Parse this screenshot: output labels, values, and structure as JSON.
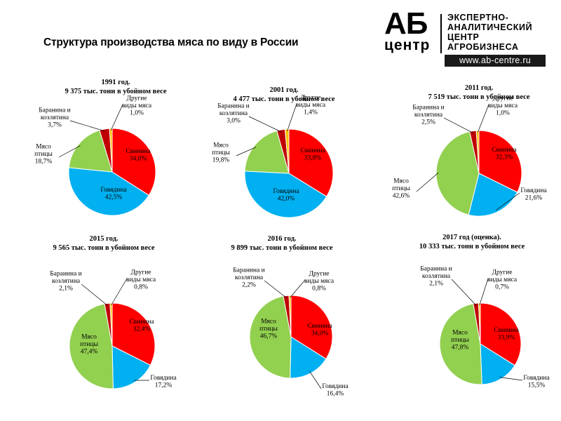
{
  "page_title": "Структура производства мяса по виду в России",
  "logo": {
    "ab": "АБ",
    "center": "центр",
    "lines": [
      "ЭКСПЕРТНО-",
      "АНАЛИТИЧЕСКИЙ",
      "ЦЕНТР",
      "АГРОБИЗНЕСА"
    ],
    "url": "www.ab-centre.ru"
  },
  "colors": {
    "Свинина": "#ff0000",
    "Говядина": "#00b0f0",
    "Мясо птицы": "#92d050",
    "Баранина и козлятина": "#c00000",
    "Другие виды мяса": "#ffc000"
  },
  "chart_data": [
    {
      "type": "pie",
      "title": "1991 год.",
      "subtitle": "9 375 тыс.  тонн  в убойном  весе",
      "slices": [
        {
          "name": "Свинина",
          "label": "Свинина",
          "pct_text": "34,0%",
          "value": 34.0
        },
        {
          "name": "Говядина",
          "label": "Говядина",
          "pct_text": "42,5%",
          "value": 42.5
        },
        {
          "name": "Мясо птицы",
          "label": "Мясо птицы",
          "pct_text": "18,7%",
          "value": 18.7
        },
        {
          "name": "Баранина и козлятина",
          "label": "Баранина и козлятина",
          "pct_text": "3,7%",
          "value": 3.7
        },
        {
          "name": "Другие виды мяса",
          "label": "Другие виды мяса",
          "pct_text": "1,0%",
          "value": 1.0
        }
      ]
    },
    {
      "type": "pie",
      "title": "2001 год.",
      "subtitle": "4 477 тыс.  тонн  в убойном   весе",
      "slices": [
        {
          "name": "Свинина",
          "label": "Свинина",
          "pct_text": "33,8%",
          "value": 33.8
        },
        {
          "name": "Говядина",
          "label": "Говядина",
          "pct_text": "42,0%",
          "value": 42.0
        },
        {
          "name": "Мясо птицы",
          "label": "Мясо птицы",
          "pct_text": "19,8%",
          "value": 19.8
        },
        {
          "name": "Баранина и козлятина",
          "label": "Баранина и козлятина",
          "pct_text": "3,0%",
          "value": 3.0
        },
        {
          "name": "Другие виды мяса",
          "label": "Другие виды мяса",
          "pct_text": "1,4%",
          "value": 1.4
        }
      ]
    },
    {
      "type": "pie",
      "title": "2011 год.",
      "subtitle": "7 519 тыс.  тонн  в убойном  весе",
      "slices": [
        {
          "name": "Свинина",
          "label": "Свинина",
          "pct_text": "32,3%",
          "value": 32.3
        },
        {
          "name": "Говядина",
          "label": "Говядина",
          "pct_text": "21,6%",
          "value": 21.6
        },
        {
          "name": "Мясо птицы",
          "label": "Мясо птицы",
          "pct_text": "42,6%",
          "value": 42.6
        },
        {
          "name": "Баранина и козлятина",
          "label": "Баранина и козлятина",
          "pct_text": "2,5%",
          "value": 2.5
        },
        {
          "name": "Другие виды мяса",
          "label": "Другие виды мяса",
          "pct_text": "1,0%",
          "value": 1.0
        }
      ]
    },
    {
      "type": "pie",
      "title": "2015 год.",
      "subtitle": "9 565 тыс.  тонн  в убойном   весе",
      "slices": [
        {
          "name": "Свинина",
          "label": "Свинина",
          "pct_text": "32,4%",
          "value": 32.4
        },
        {
          "name": "Говядина",
          "label": "Говядина",
          "pct_text": "17,2%",
          "value": 17.2
        },
        {
          "name": "Мясо птицы",
          "label": "Мясо птицы",
          "pct_text": "47,4%",
          "value": 47.4
        },
        {
          "name": "Баранина и козлятина",
          "label": "Баранина и козлятина",
          "pct_text": "2,1%",
          "value": 2.1
        },
        {
          "name": "Другие виды мяса",
          "label": "Другие виды мяса",
          "pct_text": "0,8%",
          "value": 0.8
        }
      ]
    },
    {
      "type": "pie",
      "title": "2016 год.",
      "subtitle": "9 899 тыс.  тонн  в убойном   весе",
      "slices": [
        {
          "name": "Свинина",
          "label": "Свинина",
          "pct_text": "34,0%",
          "value": 34.0
        },
        {
          "name": "Говядина",
          "label": "Говядина",
          "pct_text": "16,4%",
          "value": 16.4
        },
        {
          "name": "Мясо птицы",
          "label": "Мясо птицы",
          "pct_text": "46,7%",
          "value": 46.7
        },
        {
          "name": "Баранина и козлятина",
          "label": "Баранина и козлятина",
          "pct_text": "2,2%",
          "value": 2.2
        },
        {
          "name": "Другие виды мяса",
          "label": "Другие виды мяса",
          "pct_text": "0,8%",
          "value": 0.8
        }
      ]
    },
    {
      "type": "pie",
      "title": "2017 год (оценка).",
      "subtitle": "10 333 тыс.  тонн  в убойном  весе",
      "slices": [
        {
          "name": "Свинина",
          "label": "Свинина",
          "pct_text": "33,9%",
          "value": 33.9
        },
        {
          "name": "Говядина",
          "label": "Говядина",
          "pct_text": "15,5%",
          "value": 15.5
        },
        {
          "name": "Мясо птицы",
          "label": "Мясо птицы",
          "pct_text": "47,8%",
          "value": 47.8
        },
        {
          "name": "Баранина и козлятина",
          "label": "Баранина и козлятина",
          "pct_text": "2,1%",
          "value": 2.1
        },
        {
          "name": "Другие виды мяса",
          "label": "Другие виды мяса",
          "pct_text": "0,7%",
          "value": 0.7
        }
      ]
    }
  ]
}
